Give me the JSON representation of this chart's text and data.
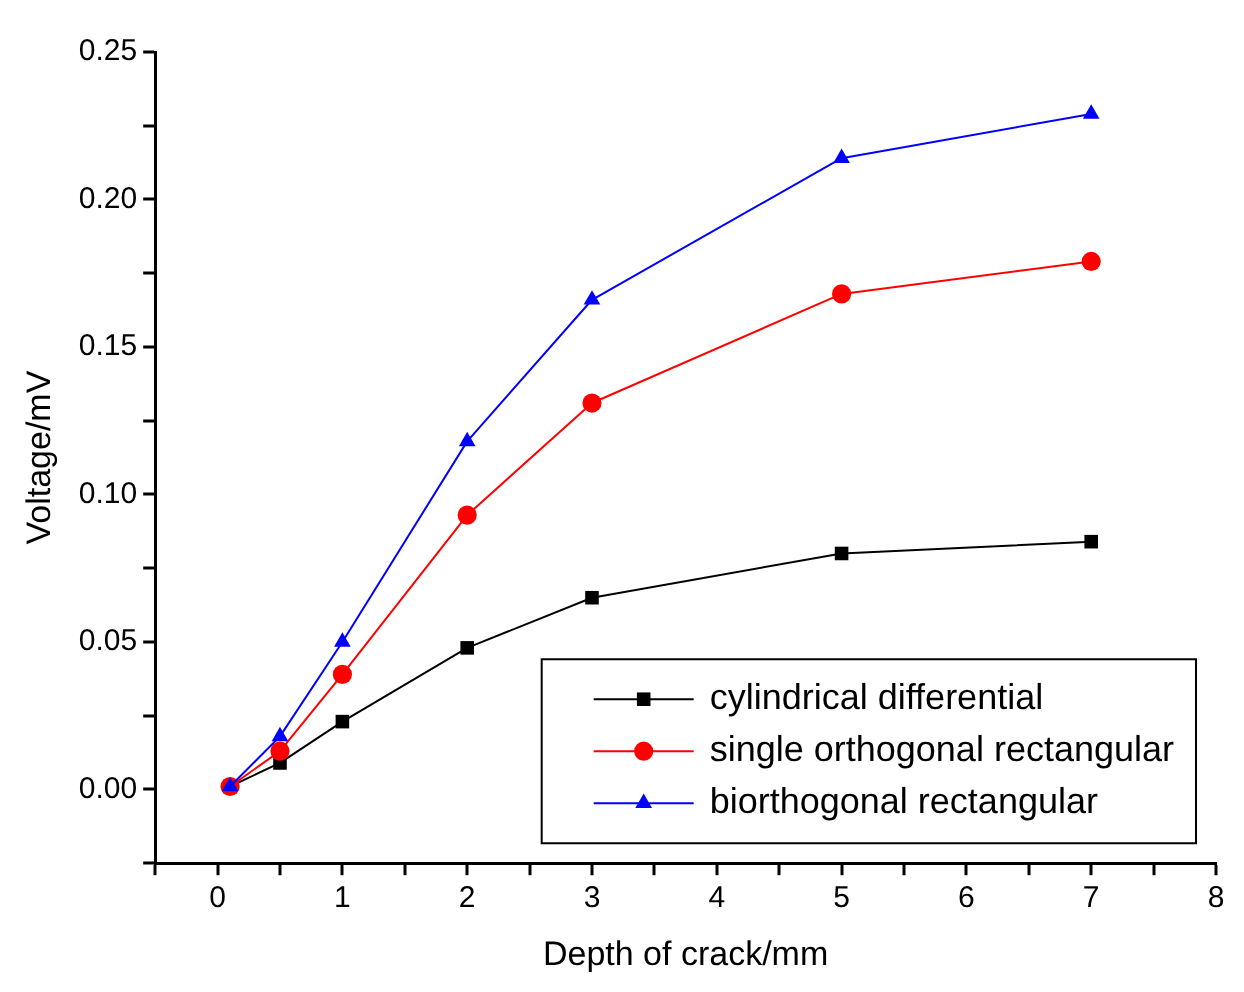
{
  "chart_data": {
    "type": "line",
    "xlabel": "Depth of crack/mm",
    "ylabel": "Voltage/mV",
    "x": [
      0.1,
      0.5,
      1,
      2,
      3,
      5,
      7
    ],
    "series": [
      {
        "name": "cylindrical differential",
        "color": "#000000",
        "marker": "square",
        "values": [
          0.001,
          0.009,
          0.023,
          0.048,
          0.065,
          0.08,
          0.084
        ]
      },
      {
        "name": "single orthogonal rectangular",
        "color": "#ff0000",
        "marker": "circle",
        "values": [
          0.001,
          0.013,
          0.039,
          0.093,
          0.131,
          0.168,
          0.179
        ]
      },
      {
        "name": "biorthogonal rectangular",
        "color": "#0000ff",
        "marker": "triangle",
        "values": [
          0.001,
          0.018,
          0.05,
          0.118,
          0.166,
          0.214,
          0.229
        ]
      }
    ],
    "xlim": [
      -0.5,
      8
    ],
    "ylim": [
      -0.025,
      0.25
    ],
    "xticks": [
      {
        "value": -0.5,
        "label": null
      },
      0,
      {
        "value": 0.5,
        "label": null
      },
      1,
      {
        "value": 1.5,
        "label": null
      },
      2,
      {
        "value": 2.5,
        "label": null
      },
      3,
      {
        "value": 3.5,
        "label": null
      },
      4,
      {
        "value": 4.5,
        "label": null
      },
      5,
      {
        "value": 5.5,
        "label": null
      },
      6,
      {
        "value": 6.5,
        "label": null
      },
      7,
      {
        "value": 7.5,
        "label": null
      },
      8
    ],
    "yticks": [
      {
        "value": -0.025,
        "label": null
      },
      {
        "value": 0,
        "label": "0.00"
      },
      {
        "value": 0.025,
        "label": null
      },
      {
        "value": 0.05,
        "label": "0.05"
      },
      {
        "value": 0.075,
        "label": null
      },
      {
        "value": 0.1,
        "label": "0.10"
      },
      {
        "value": 0.125,
        "label": null
      },
      {
        "value": 0.15,
        "label": "0.15"
      },
      {
        "value": 0.175,
        "label": null
      },
      {
        "value": 0.2,
        "label": "0.20"
      },
      {
        "value": 0.225,
        "label": null
      },
      {
        "value": 0.25,
        "label": "0.25"
      }
    ],
    "grid": false,
    "legend": "bottom right",
    "line_style": "solid"
  }
}
